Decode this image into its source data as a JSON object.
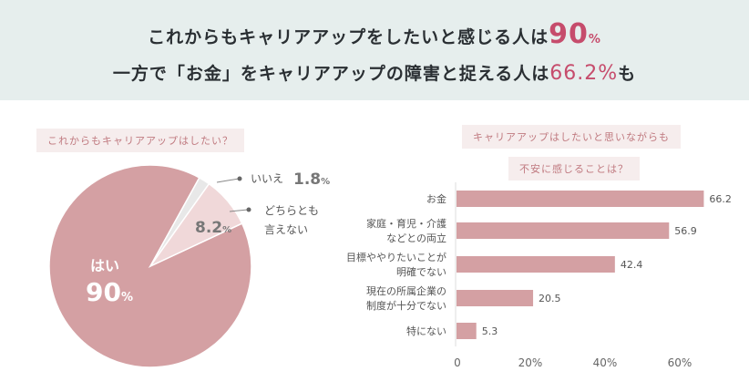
{
  "header": {
    "line1_pre": "これからもキャリアアップをしたいと感じる人は",
    "line1_value": "90",
    "line1_unit": "%",
    "line2_pre": "一方で「お金」をキャリアアップの障害と捉える人は",
    "line2_value": "66.2%",
    "line2_post": "も"
  },
  "colors": {
    "accent": "#c64c6c",
    "slice_yes": "#d4a0a3",
    "slice_no": "#e8e8e8",
    "slice_neutral": "#f0d8d9",
    "bar": "#d4a0a3"
  },
  "chart_data": [
    {
      "type": "pie",
      "title": "これからもキャリアアップはしたい？",
      "slices": [
        {
          "label": "はい",
          "value": 90,
          "display": "90",
          "unit": "%"
        },
        {
          "label": "いいえ",
          "value": 1.8,
          "display": "1.8",
          "unit": "%"
        },
        {
          "label": "どちらとも言えない",
          "label_lines": [
            "どちらとも",
            "言えない"
          ],
          "value": 8.2,
          "display": "8.2",
          "unit": "%"
        }
      ]
    },
    {
      "type": "bar",
      "orientation": "horizontal",
      "title_lines": [
        "キャリアアップはしたいと思いながらも",
        "不安に感じることは？"
      ],
      "categories": [
        [
          "お金"
        ],
        [
          "家庭・育児・介護",
          "などとの両立"
        ],
        [
          "目標ややりたいことが",
          "明確でない"
        ],
        [
          "現在の所属企業の",
          "制度が十分でない"
        ],
        [
          "特にない"
        ]
      ],
      "values": [
        66.2,
        56.9,
        42.4,
        20.5,
        5.3
      ],
      "value_labels": [
        "66.2",
        "56.9",
        "42.4",
        "20.5",
        "5.3"
      ],
      "xlim": [
        0,
        60
      ],
      "xticks": [
        "0",
        "20%",
        "40%",
        "60%"
      ],
      "grid": false
    }
  ]
}
